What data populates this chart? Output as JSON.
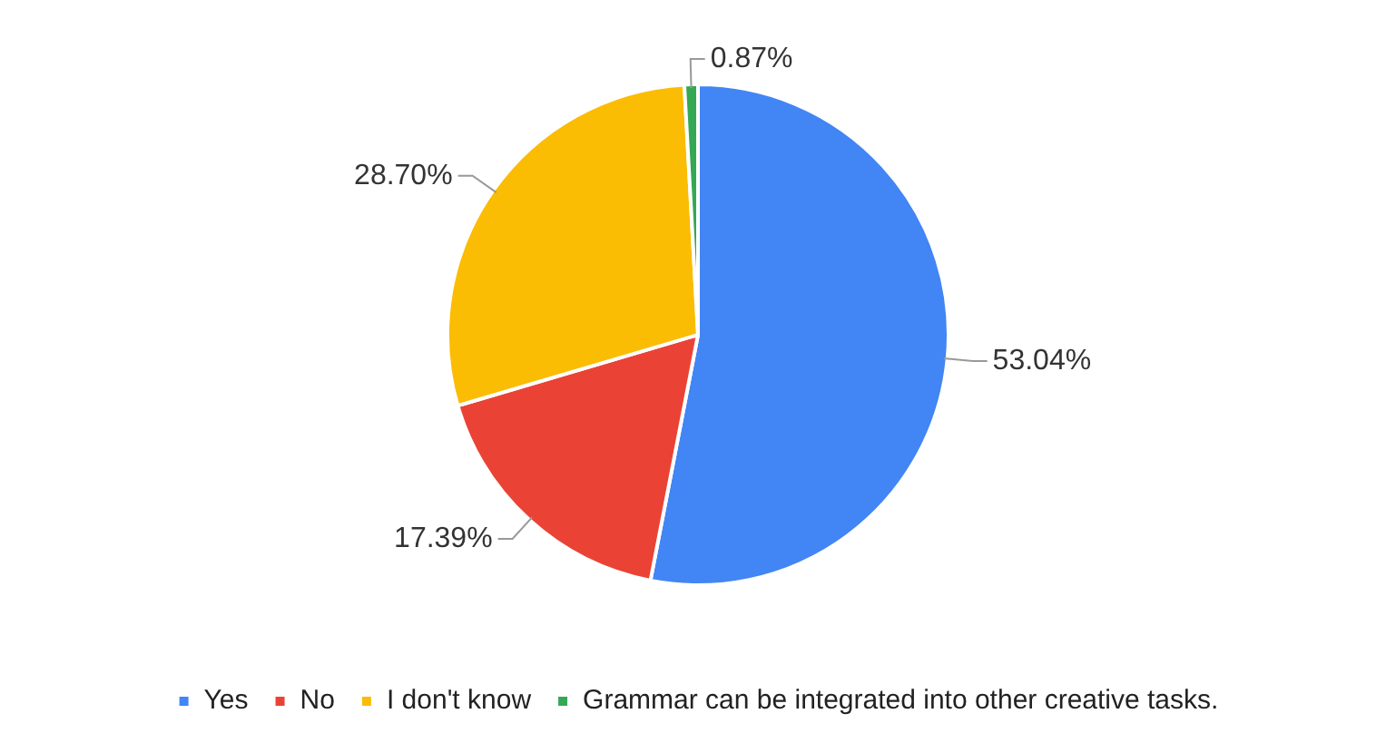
{
  "chart_data": {
    "type": "pie",
    "categories": [
      "Yes",
      "No",
      "I don't know",
      "Grammar can be integrated into other creative tasks."
    ],
    "values": [
      53.04,
      17.39,
      28.7,
      0.87
    ],
    "value_labels": [
      "53.04%",
      "17.39%",
      "28.70%",
      "0.87%"
    ],
    "colors": [
      "#4285f4",
      "#ea4335",
      "#fbbc04",
      "#34a853"
    ],
    "legend": "bottom"
  }
}
